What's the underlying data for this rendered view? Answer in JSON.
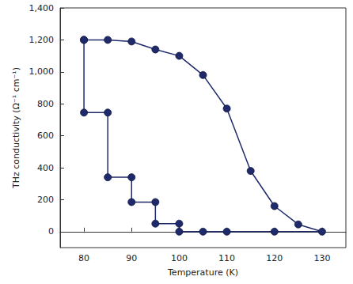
{
  "chart_data": {
    "type": "line",
    "x_label": "Temperature (K)",
    "y_label": "THz conductivity (Ω⁻¹ cm⁻¹)",
    "series": [
      {
        "name": "THz conductivity",
        "color": "#1f2a6b",
        "marker": "circle",
        "line_style": "solid",
        "x": [
          80,
          85,
          90,
          95,
          100,
          105,
          110,
          115,
          120,
          125,
          130,
          120,
          110,
          105,
          100,
          100,
          95,
          95,
          90,
          90,
          85,
          85,
          80,
          80
        ],
        "values": [
          1200,
          1200,
          1190,
          1140,
          1100,
          980,
          770,
          380,
          160,
          45,
          0,
          0,
          0,
          0,
          0,
          50,
          50,
          185,
          185,
          340,
          340,
          745,
          745,
          1200
        ]
      }
    ],
    "xlim": [
      75,
      135
    ],
    "xticks": [
      80,
      90,
      100,
      110,
      120,
      130
    ],
    "ylim": [
      -100,
      1400
    ],
    "yticks": [
      0,
      200,
      400,
      600,
      800,
      {
        "value": 1000,
        "label": "1,000"
      },
      {
        "value": 1200,
        "label": "1,200"
      },
      {
        "value": 1400,
        "label": "1,400"
      }
    ],
    "grid": false
  }
}
